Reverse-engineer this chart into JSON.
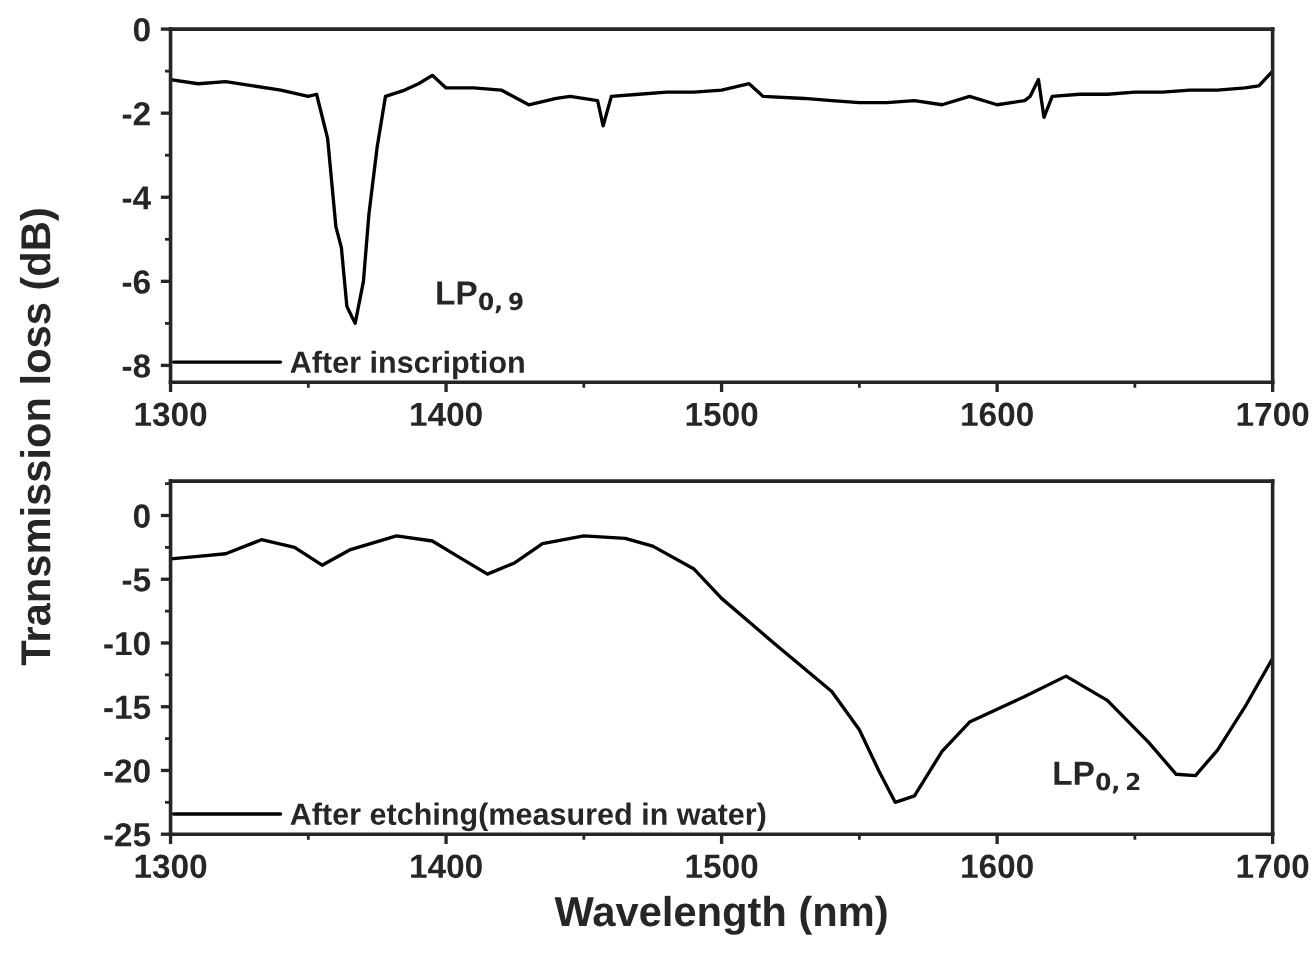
{
  "chart_data": [
    {
      "type": "line",
      "ylabel": "Transmission loss (dB)",
      "xlim": [
        1300,
        1700
      ],
      "xticks": [
        1300,
        1400,
        1500,
        1600,
        1700
      ],
      "ylim": [
        -8.4,
        0
      ],
      "yticks": [
        0,
        -2,
        -4,
        -6,
        -8
      ],
      "legend": "bottom left",
      "grid": false,
      "annotations": [
        "LP$_{0,9}$"
      ],
      "series": [
        {
          "name": "After inscription",
          "color": "#000000",
          "x": [
            1300,
            1310,
            1320,
            1330,
            1340,
            1350,
            1353,
            1357,
            1360,
            1362,
            1364,
            1367,
            1370,
            1372,
            1375,
            1378,
            1385,
            1390,
            1395,
            1400,
            1410,
            1420,
            1430,
            1440,
            1445,
            1455,
            1457,
            1460,
            1470,
            1480,
            1490,
            1500,
            1510,
            1515,
            1530,
            1540,
            1550,
            1560,
            1570,
            1580,
            1590,
            1600,
            1610,
            1612,
            1615,
            1617,
            1620,
            1630,
            1640,
            1650,
            1660,
            1670,
            1680,
            1690,
            1695,
            1700
          ],
          "values": [
            -1.2,
            -1.3,
            -1.25,
            -1.35,
            -1.45,
            -1.6,
            -1.55,
            -2.6,
            -4.7,
            -5.2,
            -6.6,
            -7.0,
            -6.0,
            -4.4,
            -2.8,
            -1.6,
            -1.45,
            -1.3,
            -1.1,
            -1.4,
            -1.4,
            -1.45,
            -1.8,
            -1.65,
            -1.6,
            -1.7,
            -2.3,
            -1.6,
            -1.55,
            -1.5,
            -1.5,
            -1.45,
            -1.3,
            -1.6,
            -1.65,
            -1.7,
            -1.75,
            -1.75,
            -1.7,
            -1.8,
            -1.6,
            -1.8,
            -1.7,
            -1.6,
            -1.2,
            -2.1,
            -1.6,
            -1.55,
            -1.55,
            -1.5,
            -1.5,
            -1.45,
            -1.45,
            -1.4,
            -1.35,
            -1.0
          ]
        }
      ]
    },
    {
      "type": "line",
      "xlabel": "Wavelength (nm)",
      "xlim": [
        1300,
        1700
      ],
      "xticks": [
        1300,
        1400,
        1500,
        1600,
        1700
      ],
      "ylim": [
        -25,
        2.7
      ],
      "yticks": [
        0,
        -5,
        -10,
        -15,
        -20,
        -25
      ],
      "legend": "bottom left",
      "grid": false,
      "annotations": [
        "LP$_{0,2}$"
      ],
      "series": [
        {
          "name": "After etching(measured in water)",
          "color": "#000000",
          "x": [
            1300,
            1310,
            1320,
            1333,
            1345,
            1355,
            1365,
            1382,
            1395,
            1405,
            1415,
            1425,
            1435,
            1450,
            1465,
            1475,
            1490,
            1500,
            1520,
            1540,
            1550,
            1557,
            1563,
            1570,
            1580,
            1590,
            1600,
            1610,
            1625,
            1640,
            1655,
            1665,
            1672,
            1680,
            1690,
            1700
          ],
          "values": [
            -3.4,
            -3.2,
            -3.0,
            -1.9,
            -2.5,
            -3.9,
            -2.7,
            -1.6,
            -2.0,
            -3.3,
            -4.6,
            -3.7,
            -2.2,
            -1.6,
            -1.8,
            -2.4,
            -4.2,
            -6.5,
            -10.2,
            -13.8,
            -16.8,
            -20.0,
            -22.5,
            -22.0,
            -18.5,
            -16.2,
            -15.2,
            -14.2,
            -12.6,
            -14.5,
            -17.8,
            -20.3,
            -20.4,
            -18.4,
            -15.0,
            -11.2
          ]
        }
      ]
    }
  ]
}
